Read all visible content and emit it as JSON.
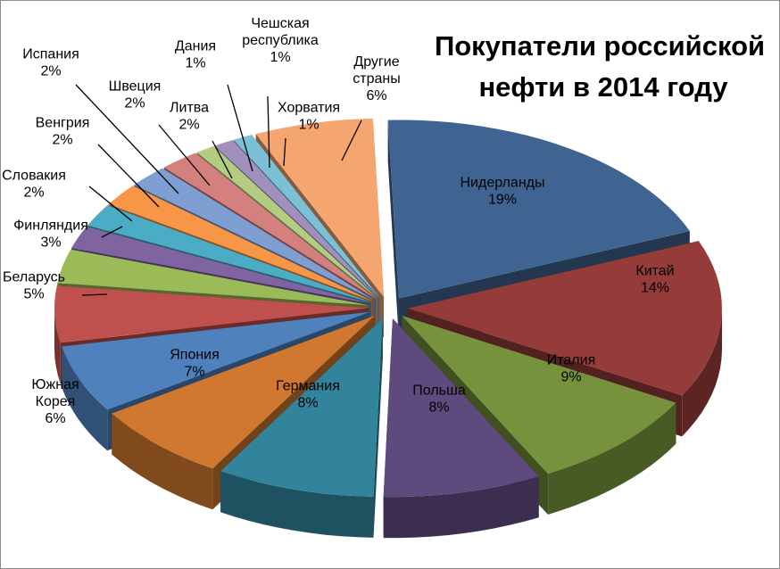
{
  "chart_data": {
    "type": "pie",
    "title_lines": [
      "Покупатели российской",
      "нефти в 2014 году"
    ],
    "slices": [
      {
        "name": "Нидерланды",
        "name_lines": [
          "Нидерланды"
        ],
        "value": 19,
        "label": "19%",
        "color": "#3f6491"
      },
      {
        "name": "Китай",
        "name_lines": [
          "Китай"
        ],
        "value": 14,
        "label": "14%",
        "color": "#953c3a"
      },
      {
        "name": "Италия",
        "name_lines": [
          "Италия"
        ],
        "value": 9,
        "label": "9%",
        "color": "#76923c"
      },
      {
        "name": "Польша",
        "name_lines": [
          "Польша"
        ],
        "value": 8,
        "label": "8%",
        "color": "#5f4a7d"
      },
      {
        "name": "Германия",
        "name_lines": [
          "Германия"
        ],
        "value": 8,
        "label": "8%",
        "color": "#31849b"
      },
      {
        "name": "Япония",
        "name_lines": [
          "Япония"
        ],
        "value": 7,
        "label": "7%",
        "color": "#d0782f"
      },
      {
        "name": "Южная Корея",
        "name_lines": [
          "Южная",
          "Корея"
        ],
        "value": 6,
        "label": "6%",
        "color": "#4f81bd"
      },
      {
        "name": "Беларусь",
        "name_lines": [
          "Беларусь"
        ],
        "value": 5,
        "label": "5%",
        "color": "#c0504d"
      },
      {
        "name": "Финляндия",
        "name_lines": [
          "Финляндия"
        ],
        "value": 3,
        "label": "3%",
        "color": "#9bbb59"
      },
      {
        "name": "Словакия",
        "name_lines": [
          "Словакия"
        ],
        "value": 2,
        "label": "2%",
        "color": "#8064a2"
      },
      {
        "name": "Венгрия",
        "name_lines": [
          "Венгрия"
        ],
        "value": 2,
        "label": "2%",
        "color": "#4bacc6"
      },
      {
        "name": "Испания",
        "name_lines": [
          "Испания"
        ],
        "value": 2,
        "label": "2%",
        "color": "#f79646"
      },
      {
        "name": "Швеция",
        "name_lines": [
          "Швеция"
        ],
        "value": 2,
        "label": "2%",
        "color": "#7f9fd3"
      },
      {
        "name": "Литва",
        "name_lines": [
          "Литва"
        ],
        "value": 2,
        "label": "2%",
        "color": "#d3807e"
      },
      {
        "name": "Дания",
        "name_lines": [
          "Дания"
        ],
        "value": 1,
        "label": "1%",
        "color": "#b3cc82"
      },
      {
        "name": "Чешская республика",
        "name_lines": [
          "Чешская",
          "республика"
        ],
        "value": 1,
        "label": "1%",
        "color": "#a18fbe"
      },
      {
        "name": "Хорватия",
        "name_lines": [
          "Хорватия"
        ],
        "value": 1,
        "label": "1%",
        "color": "#7cc0d6"
      },
      {
        "name": "Другие страны",
        "name_lines": [
          "Другие",
          "страны"
        ],
        "value": 6,
        "label": "6%",
        "color": "#f5a670"
      }
    ],
    "exploded": true,
    "three_d": true,
    "legend": "none"
  }
}
